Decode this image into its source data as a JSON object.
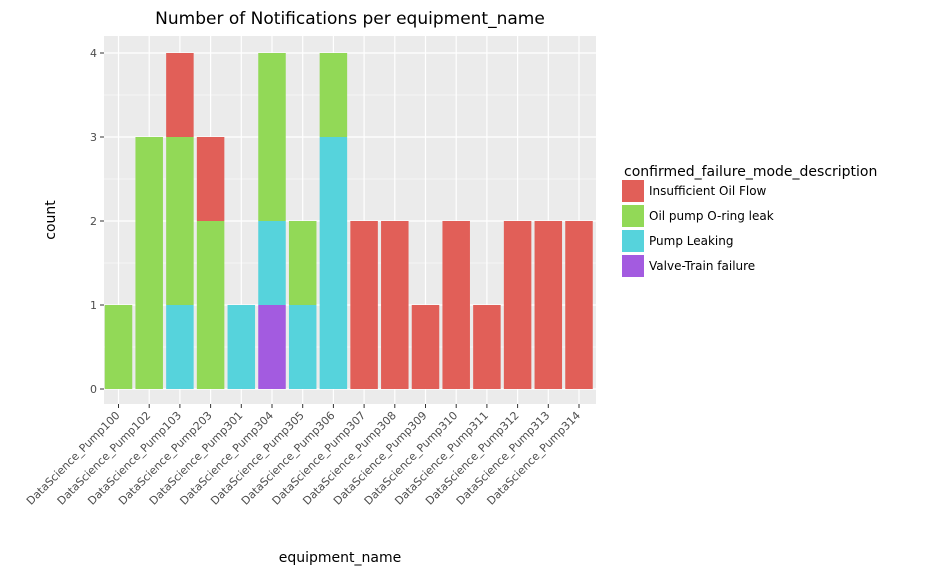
{
  "chart_data": {
    "type": "bar",
    "stacked": true,
    "title": "Number of Notifications per equipment_name",
    "xlabel": "equipment_name",
    "ylabel": "count",
    "ylim": [
      0,
      4
    ],
    "yticks": [
      "0",
      "1",
      "2",
      "3",
      "4"
    ],
    "categories": [
      "DataScience_Pump100",
      "DataScience_Pump102",
      "DataScience_Pump103",
      "DataScience_Pump203",
      "DataScience_Pump301",
      "DataScience_Pump304",
      "DataScience_Pump305",
      "DataScience_Pump306",
      "DataScience_Pump307",
      "DataScience_Pump308",
      "DataScience_Pump309",
      "DataScience_Pump310",
      "DataScience_Pump311",
      "DataScience_Pump312",
      "DataScience_Pump313",
      "DataScience_Pump314"
    ],
    "legend_title": "confirmed_failure_mode_description",
    "legend_position": "right",
    "series": [
      {
        "name": "Insufficient Oil  Flow",
        "color": "#e15f58",
        "values": [
          0,
          0,
          1,
          1,
          0,
          0,
          0,
          0,
          2,
          2,
          1,
          2,
          1,
          2,
          2,
          2
        ]
      },
      {
        "name": "Oil pump O-ring  leak",
        "color": "#92d957",
        "values": [
          1,
          3,
          2,
          2,
          0,
          2,
          1,
          1,
          0,
          0,
          0,
          0,
          0,
          0,
          0,
          0
        ]
      },
      {
        "name": "Pump Leaking",
        "color": "#56d3dc",
        "values": [
          0,
          0,
          1,
          0,
          1,
          1,
          1,
          3,
          0,
          0,
          0,
          0,
          0,
          0,
          0,
          0
        ]
      },
      {
        "name": "Valve-Train failure",
        "color": "#a35be0",
        "values": [
          0,
          0,
          0,
          0,
          0,
          1,
          0,
          0,
          0,
          0,
          0,
          0,
          0,
          0,
          0,
          0
        ]
      }
    ],
    "stack_order_bottom_to_top": [
      "Valve-Train failure",
      "Pump Leaking",
      "Oil pump O-ring  leak",
      "Insufficient Oil  Flow"
    ],
    "grid": true,
    "panel_color": "#ebebeb",
    "grid_color": "#ffffff"
  }
}
